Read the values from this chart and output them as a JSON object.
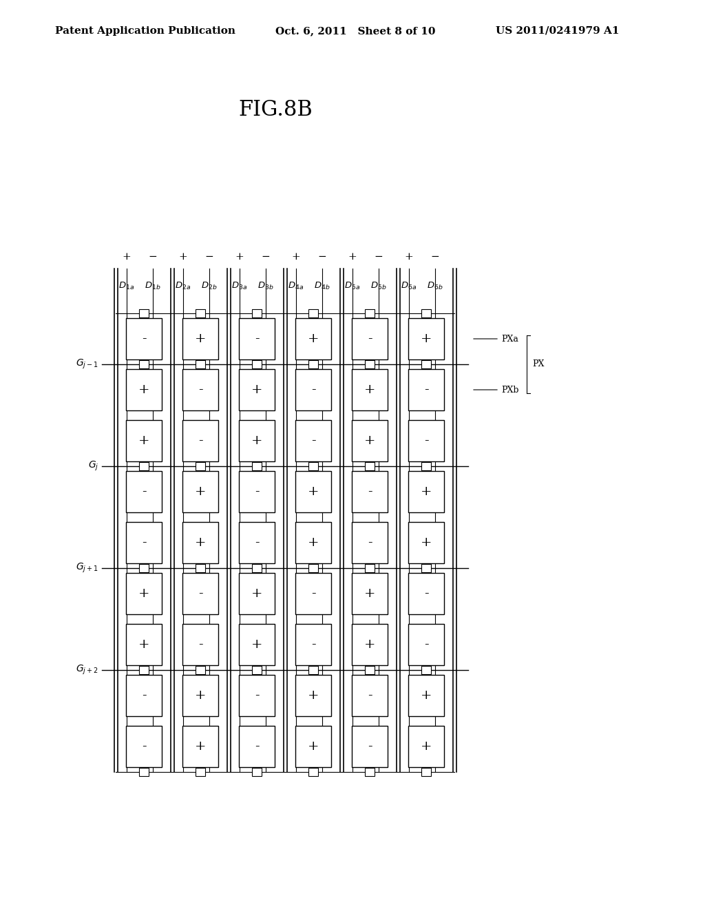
{
  "title": "FIG.8B",
  "header_left": "Patent Application Publication",
  "header_center": "Oct. 6, 2011   Sheet 8 of 10",
  "header_right": "US 2011/0241979 A1",
  "bg_color": "#ffffff",
  "line_color": "#000000",
  "grid_cols": 6,
  "grid_rows": 5,
  "col_labels": [
    "D_{1a}",
    "D_{1b}",
    "D_{2a}",
    "D_{2b}",
    "D_{3a}",
    "D_{3b}",
    "D_{4a}",
    "D_{4b}",
    "D_{5a}",
    "D_{5b}",
    "D_{6a}",
    "D_{6b}"
  ],
  "row_labels": [
    "G_{j-1}",
    "G_j",
    "G_{j+1}",
    "G_{j+2}"
  ],
  "col_signs": [
    "+",
    "-",
    "+",
    "-",
    "+",
    "-"
  ],
  "cell_signs": [
    [
      "-",
      "+",
      "-",
      "+",
      "-",
      "+"
    ],
    [
      "+",
      "-",
      "+",
      "-",
      "+",
      "-"
    ],
    [
      "+",
      "-",
      "+",
      "-",
      "+",
      "-"
    ],
    [
      "-",
      "+",
      "-",
      "+",
      "-",
      "+"
    ],
    [
      "-",
      "+",
      "-",
      "+",
      "-",
      "+"
    ],
    [
      "+",
      "-",
      "+",
      "-",
      "+",
      "-"
    ],
    [
      "+",
      "-",
      "+",
      "-",
      "+",
      "-"
    ],
    [
      "-",
      "+",
      "-",
      "+",
      "-",
      "+"
    ],
    [
      "-",
      "+",
      "-",
      "+",
      "-",
      "+"
    ],
    [
      "+",
      "-",
      "+",
      "-",
      "+",
      "-"
    ]
  ]
}
